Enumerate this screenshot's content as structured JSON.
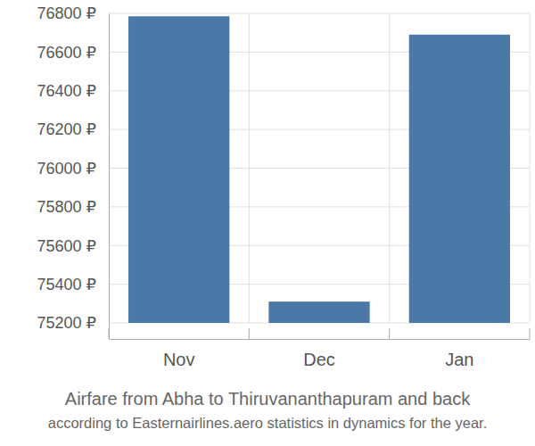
{
  "chart_data": {
    "type": "bar",
    "title": "Airfare from Abha to Thiruvananthapuram and back",
    "subtitle": "according to Easternairlines.aero statistics in dynamics for the year.",
    "categories": [
      "Nov",
      "Dec",
      "Jan"
    ],
    "values": [
      76785,
      75310,
      76690
    ],
    "color": "#4c78a8",
    "ylim": [
      75200,
      76800
    ],
    "yticks": [
      {
        "value": 75200,
        "label": "75200 ₽"
      },
      {
        "value": 75400,
        "label": "75400 ₽"
      },
      {
        "value": 75600,
        "label": "75600 ₽"
      },
      {
        "value": 75800,
        "label": "75800 ₽"
      },
      {
        "value": 76000,
        "label": "76000 ₽"
      },
      {
        "value": 76200,
        "label": "76200 ₽"
      },
      {
        "value": 76400,
        "label": "76400 ₽"
      },
      {
        "value": 76600,
        "label": "76600 ₽"
      },
      {
        "value": 76800,
        "label": "76800 ₽"
      }
    ],
    "grid": true
  }
}
